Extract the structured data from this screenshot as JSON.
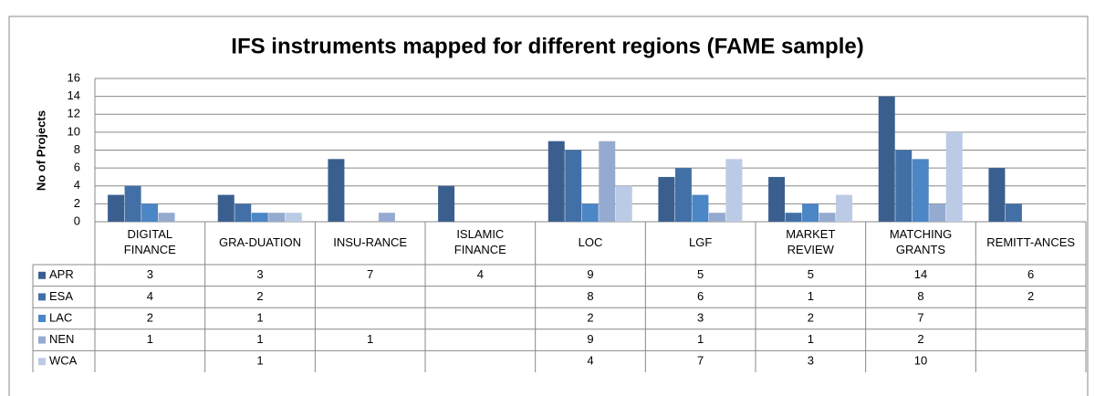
{
  "chart_data": {
    "type": "bar",
    "title": "IFS instruments mapped for different regions (FAME sample)",
    "y_label": "No of Projects",
    "categories": [
      "DIGITAL FINANCE",
      "GRA-DUATION",
      "INSU-RANCE",
      "ISLAMIC FINANCE",
      "LOC",
      "LGF",
      "MARKET REVIEW",
      "MATCHING GRANTS",
      "REMITT-ANCES"
    ],
    "series": [
      {
        "name": "APR",
        "color": "#3a5f8f",
        "values": [
          3,
          3,
          7,
          4,
          9,
          5,
          5,
          14,
          6
        ]
      },
      {
        "name": "ESA",
        "color": "#4270a6",
        "values": [
          4,
          2,
          null,
          null,
          8,
          6,
          1,
          8,
          2
        ]
      },
      {
        "name": "LAC",
        "color": "#4b86c6",
        "values": [
          2,
          1,
          null,
          null,
          2,
          3,
          2,
          7,
          null
        ]
      },
      {
        "name": "NEN",
        "color": "#95aad0",
        "values": [
          1,
          1,
          1,
          null,
          9,
          1,
          1,
          2,
          null
        ]
      },
      {
        "name": "WCA",
        "color": "#bccbe5",
        "values": [
          null,
          1,
          null,
          null,
          4,
          7,
          3,
          10,
          null
        ]
      }
    ],
    "ylim": [
      0,
      16
    ],
    "yticks": [
      0,
      2,
      4,
      6,
      8,
      10,
      12,
      14,
      16
    ],
    "grid": true,
    "data_table": true
  }
}
